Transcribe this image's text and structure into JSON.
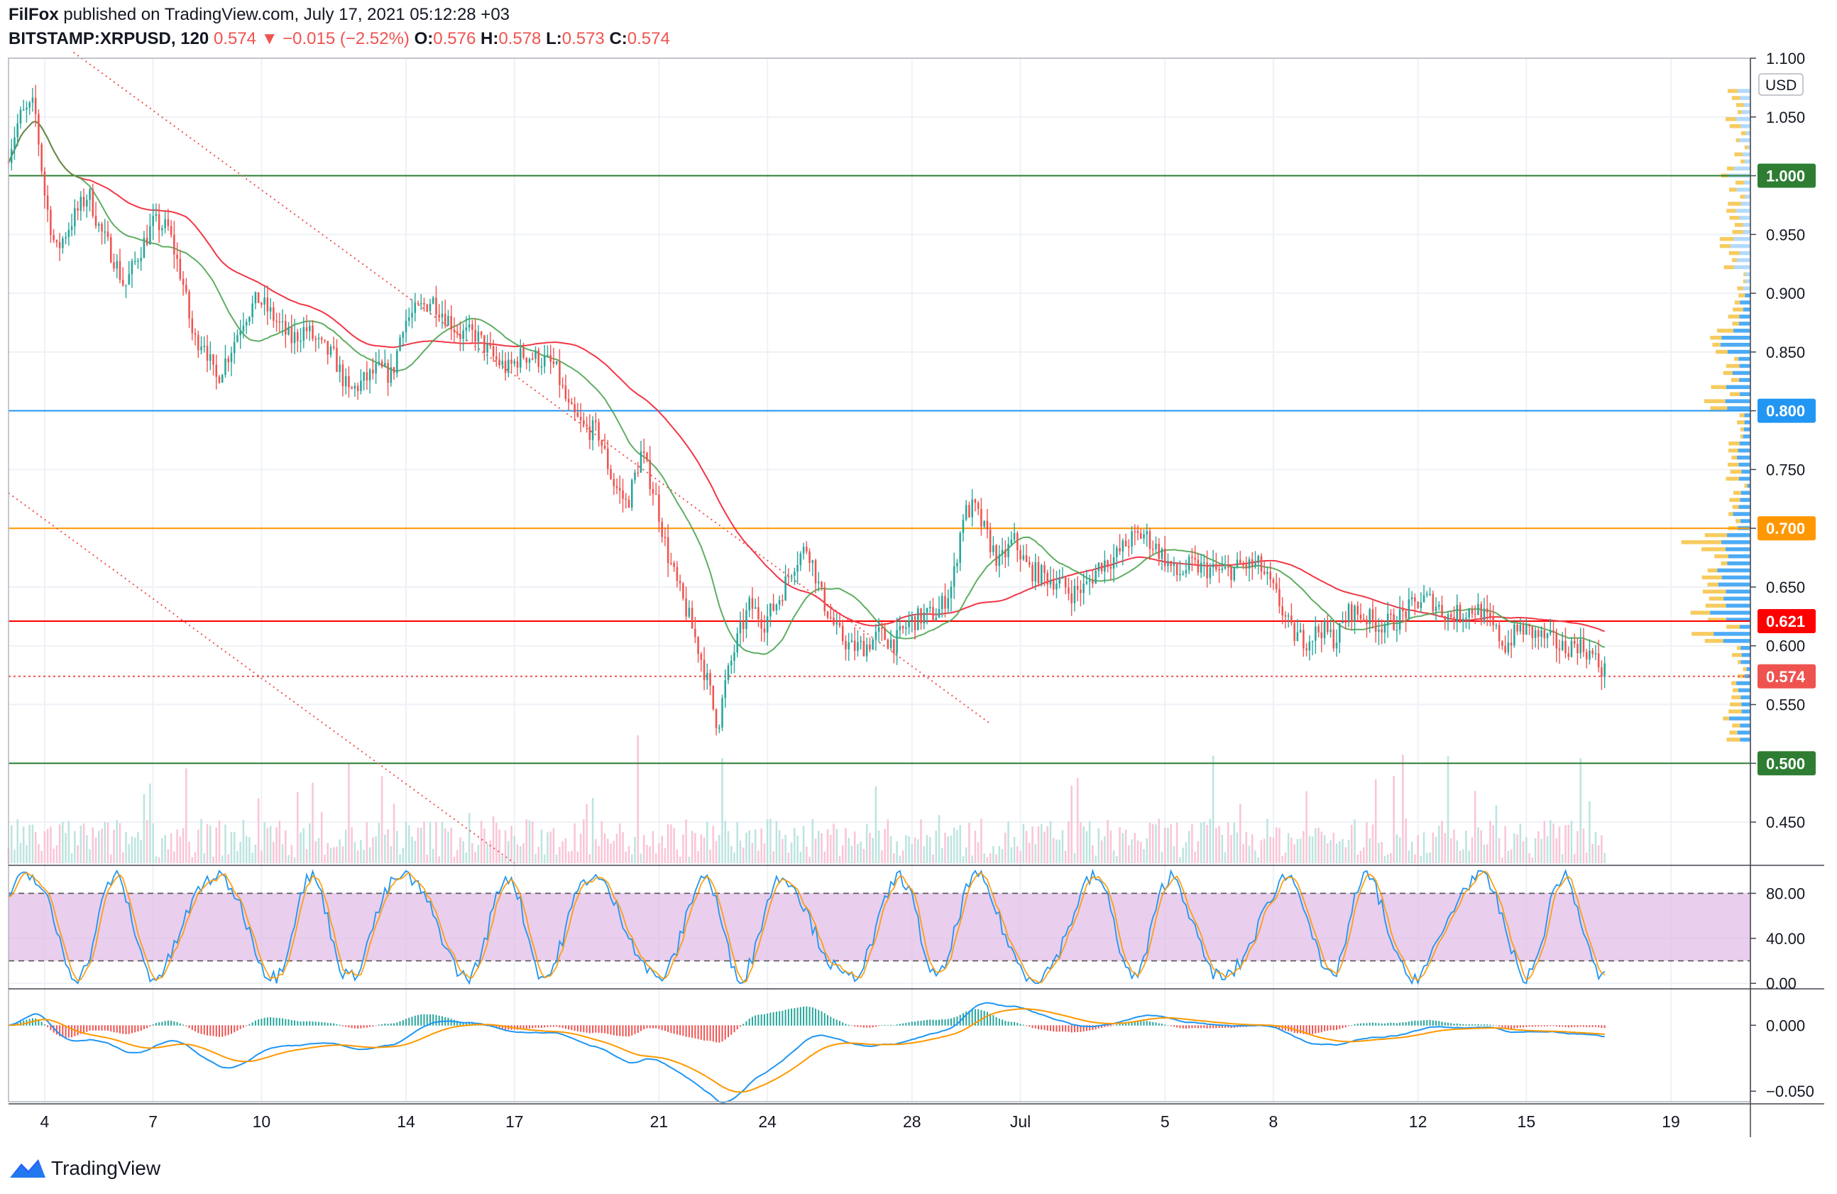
{
  "header": {
    "publisher": "FilFox",
    "published_text": "published on TradingView.com, July 17, 2021 05:12:28 +03",
    "symbol": "BITSTAMP:XRPUSD, 120",
    "last": "0.574",
    "change": "−0.015 (−2.52%)",
    "o_label": "O:",
    "o_value": "0.576",
    "h_label": "H:",
    "h_value": "0.578",
    "l_label": "L:",
    "l_value": "0.573",
    "c_label": "C:",
    "c_value": "0.574"
  },
  "footer": {
    "brand": "TradingView"
  },
  "colors": {
    "up": "#26a69a",
    "down": "#ef5350",
    "ma_red": "#f23645",
    "ma_green": "#43a047",
    "blue_line": "#2196f3",
    "orange_line": "#ff9800",
    "stoch_fill": "#e1bee7",
    "profile_blue": "#2196f3",
    "profile_orange": "#f5c242"
  },
  "chart_data": [
    {
      "type": "candlestick",
      "pane": "price",
      "currency": "USD",
      "ylim": [
        0.415,
        1.1
      ],
      "y_ticks": [
        "1.100",
        "1.050",
        "1.000",
        "0.950",
        "0.900",
        "0.850",
        "0.800",
        "0.750",
        "0.700",
        "0.650",
        "0.600",
        "0.550",
        "0.500",
        "0.450"
      ],
      "x_ticks": [
        {
          "label": "4",
          "day": 4
        },
        {
          "label": "7",
          "day": 7
        },
        {
          "label": "10",
          "day": 10
        },
        {
          "label": "14",
          "day": 14
        },
        {
          "label": "17",
          "day": 17
        },
        {
          "label": "21",
          "day": 21
        },
        {
          "label": "24",
          "day": 24
        },
        {
          "label": "28",
          "day": 28
        },
        {
          "label": "Jul",
          "day": 31
        },
        {
          "label": "5",
          "day": 35
        },
        {
          "label": "8",
          "day": 38
        },
        {
          "label": "12",
          "day": 42
        },
        {
          "label": "15",
          "day": 45
        },
        {
          "label": "19",
          "day": 49
        }
      ],
      "x_range_days": [
        3.0,
        51.2
      ],
      "path": [
        [
          3.0,
          1.012
        ],
        [
          3.4,
          1.05
        ],
        [
          3.8,
          1.06
        ],
        [
          4.1,
          0.98
        ],
        [
          4.4,
          0.935
        ],
        [
          4.8,
          0.96
        ],
        [
          5.3,
          0.985
        ],
        [
          5.6,
          0.955
        ],
        [
          6.0,
          0.93
        ],
        [
          6.3,
          0.905
        ],
        [
          6.7,
          0.935
        ],
        [
          7.1,
          0.96
        ],
        [
          7.5,
          0.955
        ],
        [
          7.9,
          0.91
        ],
        [
          8.2,
          0.86
        ],
        [
          8.5,
          0.86
        ],
        [
          8.8,
          0.825
        ],
        [
          9.2,
          0.85
        ],
        [
          9.6,
          0.88
        ],
        [
          10.0,
          0.895
        ],
        [
          10.4,
          0.88
        ],
        [
          10.9,
          0.86
        ],
        [
          11.3,
          0.87
        ],
        [
          11.7,
          0.855
        ],
        [
          12.1,
          0.845
        ],
        [
          12.5,
          0.815
        ],
        [
          12.9,
          0.825
        ],
        [
          13.3,
          0.835
        ],
        [
          13.7,
          0.83
        ],
        [
          14.0,
          0.875
        ],
        [
          14.4,
          0.885
        ],
        [
          14.8,
          0.895
        ],
        [
          15.2,
          0.88
        ],
        [
          15.6,
          0.865
        ],
        [
          16.0,
          0.865
        ],
        [
          16.5,
          0.845
        ],
        [
          16.9,
          0.835
        ],
        [
          17.3,
          0.848
        ],
        [
          17.7,
          0.845
        ],
        [
          18.2,
          0.838
        ],
        [
          18.6,
          0.8
        ],
        [
          19.0,
          0.785
        ],
        [
          19.4,
          0.782
        ],
        [
          19.8,
          0.74
        ],
        [
          20.2,
          0.72
        ],
        [
          20.6,
          0.765
        ],
        [
          21.0,
          0.725
        ],
        [
          21.3,
          0.68
        ],
        [
          21.6,
          0.65
        ],
        [
          21.9,
          0.625
        ],
        [
          22.2,
          0.595
        ],
        [
          22.5,
          0.56
        ],
        [
          22.7,
          0.528
        ],
        [
          22.9,
          0.565
        ],
        [
          23.2,
          0.6
        ],
        [
          23.6,
          0.635
        ],
        [
          24.0,
          0.62
        ],
        [
          24.4,
          0.64
        ],
        [
          24.8,
          0.67
        ],
        [
          25.2,
          0.685
        ],
        [
          25.6,
          0.64
        ],
        [
          26.0,
          0.612
        ],
        [
          26.4,
          0.598
        ],
        [
          26.8,
          0.6
        ],
        [
          27.2,
          0.61
        ],
        [
          27.6,
          0.602
        ],
        [
          28.0,
          0.62
        ],
        [
          28.4,
          0.625
        ],
        [
          28.8,
          0.628
        ],
        [
          29.2,
          0.652
        ],
        [
          29.5,
          0.712
        ],
        [
          29.8,
          0.718
        ],
        [
          30.2,
          0.69
        ],
        [
          30.5,
          0.67
        ],
        [
          30.9,
          0.69
        ],
        [
          31.3,
          0.665
        ],
        [
          31.7,
          0.66
        ],
        [
          32.1,
          0.655
        ],
        [
          32.5,
          0.645
        ],
        [
          32.9,
          0.65
        ],
        [
          33.3,
          0.67
        ],
        [
          33.7,
          0.675
        ],
        [
          34.1,
          0.69
        ],
        [
          34.5,
          0.695
        ],
        [
          35.0,
          0.678
        ],
        [
          35.4,
          0.66
        ],
        [
          35.8,
          0.668
        ],
        [
          36.3,
          0.665
        ],
        [
          36.7,
          0.662
        ],
        [
          37.2,
          0.668
        ],
        [
          37.7,
          0.668
        ],
        [
          38.2,
          0.64
        ],
        [
          38.6,
          0.61
        ],
        [
          39.0,
          0.605
        ],
        [
          39.4,
          0.615
        ],
        [
          39.8,
          0.605
        ],
        [
          40.2,
          0.63
        ],
        [
          40.6,
          0.625
        ],
        [
          41.0,
          0.618
        ],
        [
          41.4,
          0.62
        ],
        [
          41.8,
          0.63
        ],
        [
          42.2,
          0.64
        ],
        [
          42.5,
          0.638
        ],
        [
          42.9,
          0.625
        ],
        [
          43.3,
          0.628
        ],
        [
          43.7,
          0.632
        ],
        [
          44.1,
          0.618
        ],
        [
          44.5,
          0.6
        ],
        [
          44.9,
          0.615
        ],
        [
          45.3,
          0.61
        ],
        [
          45.7,
          0.605
        ],
        [
          46.1,
          0.598
        ],
        [
          46.5,
          0.602
        ],
        [
          46.9,
          0.592
        ],
        [
          47.2,
          0.578
        ]
      ],
      "lines": [
        {
          "price": 1.0,
          "color": "#2e7d32",
          "label": "1.000"
        },
        {
          "price": 0.8,
          "color": "#2196f3",
          "label": "0.800"
        },
        {
          "price": 0.7,
          "color": "#ff9800",
          "label": "0.700"
        },
        {
          "price": 0.621,
          "color": "#ff0000",
          "label": "0.621"
        },
        {
          "price": 0.5,
          "color": "#2e7d32",
          "label": "0.500"
        }
      ],
      "last_price": {
        "price": 0.574,
        "label": "0.574",
        "color": "#ef5350"
      },
      "trendlines": [
        {
          "from": [
            4.8,
            1.105
          ],
          "to": [
            30.2,
            0.533
          ],
          "color": "#ef5350",
          "style": "dotted"
        },
        {
          "from": [
            3.0,
            0.73
          ],
          "to": [
            17.0,
            0.415
          ],
          "color": "#ef5350",
          "style": "dotted"
        }
      ]
    },
    {
      "type": "line",
      "pane": "stochastic",
      "ylim": [
        -3,
        103
      ],
      "y_ticks": [
        "80.00",
        "40.00",
        "0.00"
      ],
      "band": [
        20,
        80
      ]
    },
    {
      "type": "line",
      "pane": "macd",
      "ylim": [
        -0.058,
        0.026
      ],
      "y_ticks": [
        "0.000",
        "−0.050"
      ]
    }
  ]
}
